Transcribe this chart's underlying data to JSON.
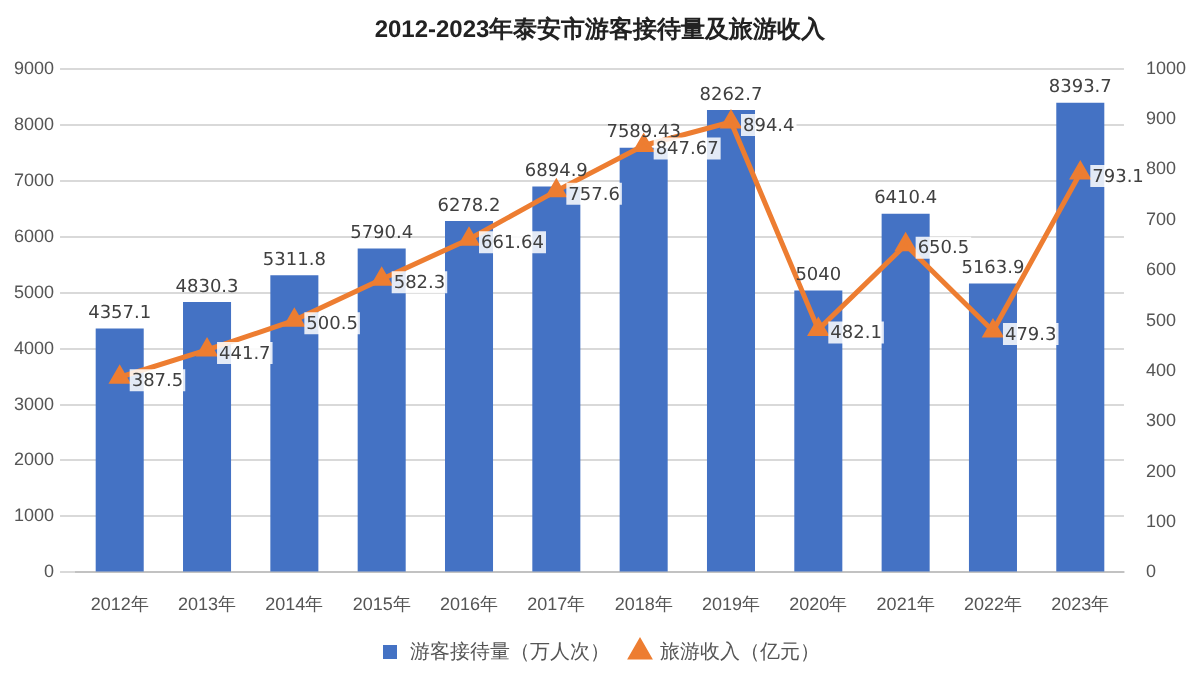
{
  "chart_data": {
    "type": "bar",
    "title": "2012-2023年泰安市游客接待量及旅游收入",
    "categories": [
      "2012年",
      "2013年",
      "2014年",
      "2015年",
      "2016年",
      "2017年",
      "2018年",
      "2019年",
      "2020年",
      "2021年",
      "2022年",
      "2023年"
    ],
    "series": [
      {
        "name": "游客接待量（万人次）",
        "color": "#4472c4",
        "values": [
          4357.1,
          4830.3,
          5311.8,
          5790.4,
          6278.2,
          6894.9,
          7589.43,
          8262.7,
          5040,
          6410.4,
          5163.9,
          8393.7
        ]
      },
      {
        "name": "旅游收入（亿元）",
        "type": "line",
        "axis": "y2",
        "color": "#ed7d31",
        "values": [
          387.5,
          441.7,
          500.5,
          582.3,
          661.64,
          757.6,
          847.67,
          894.4,
          482.1,
          650.5,
          479.3,
          793.1
        ]
      }
    ],
    "ylim": [
      0,
      9000
    ],
    "yticks": [
      0,
      1000,
      2000,
      3000,
      4000,
      5000,
      6000,
      7000,
      8000,
      9000
    ],
    "y2lim": [
      0,
      1000
    ],
    "y2ticks": [
      0,
      100,
      200,
      300,
      400,
      500,
      600,
      700,
      800,
      900,
      1000
    ],
    "grid": "y",
    "legend": "bottom",
    "marker": "triangle",
    "line_style": "solid",
    "data_labels": true
  }
}
